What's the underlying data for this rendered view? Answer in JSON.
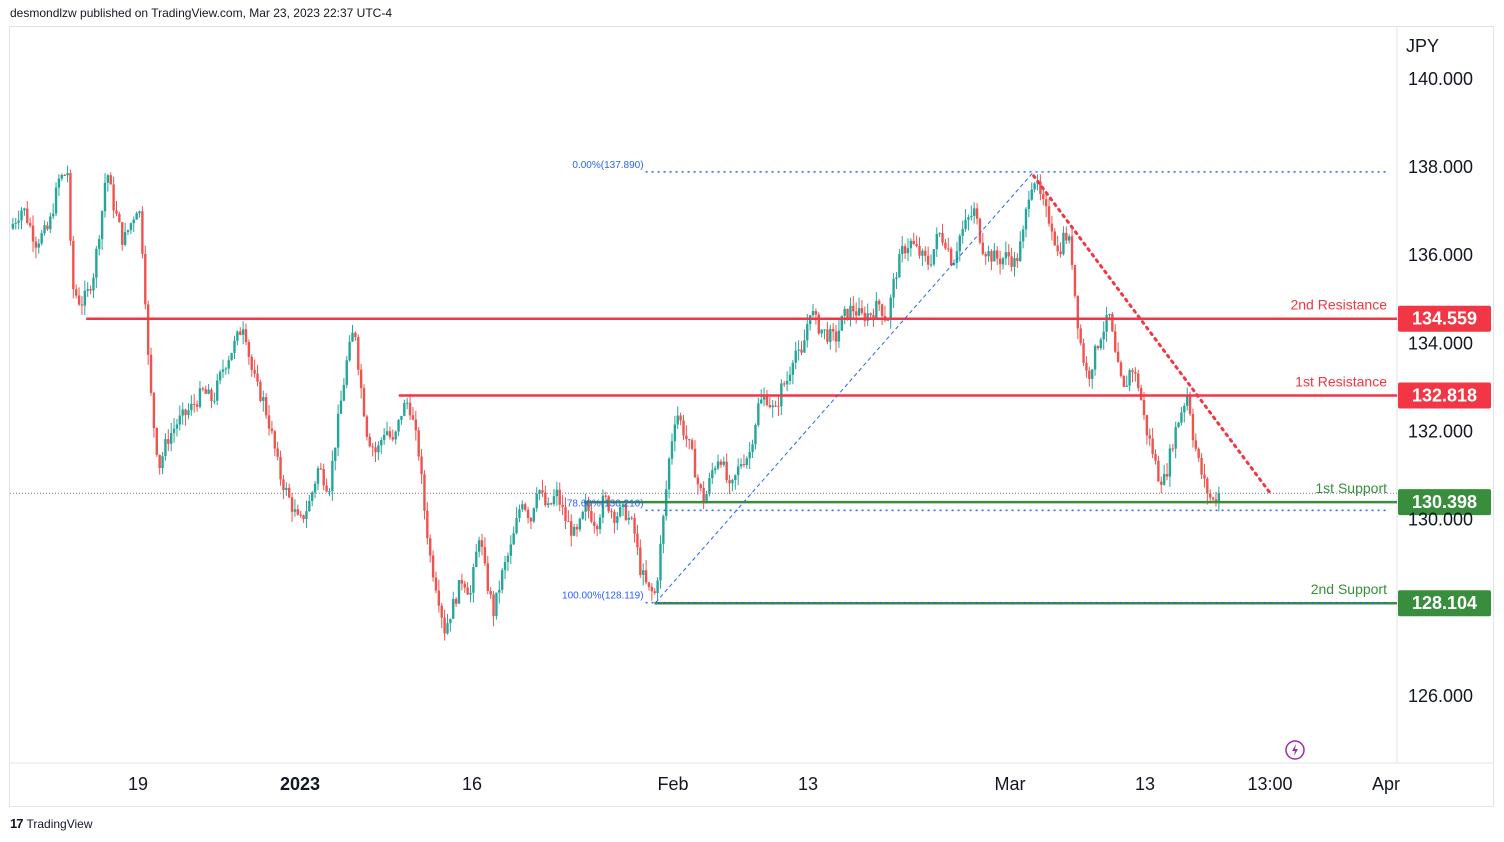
{
  "header": {
    "text": "desmondlzw published on TradingView.com, Mar 23, 2023 22:37 UTC-4"
  },
  "footer": {
    "brand": "TradingView",
    "logo_glyph": "17"
  },
  "colors": {
    "up": "#26a69a",
    "down": "#ef5350",
    "resistance": "#f23645",
    "support": "#388e3c",
    "fib": "#2962ff"
  },
  "chart_data": {
    "type": "candlestick",
    "currency": "JPY",
    "y_ticks": [
      "140.000",
      "138.000",
      "136.000",
      "134.000",
      "132.000",
      "130.000",
      "126.000"
    ],
    "ylim": [
      124.8,
      140.5
    ],
    "x_labels": [
      "19",
      "2023",
      "16",
      "Feb",
      "13",
      "Mar",
      "13",
      "13:00",
      "Apr"
    ],
    "bold_x_labels": [
      "2023"
    ],
    "levels": [
      {
        "name": "2nd Resistance",
        "value": 134.559,
        "tag": "134.559",
        "kind": "resistance",
        "from_t": 0.0592
      },
      {
        "name": "1st Resistance",
        "value": 132.818,
        "tag": "132.818",
        "kind": "resistance",
        "from_t": 0.3023
      },
      {
        "name": "1st Support",
        "value": 130.398,
        "tag": "130.398",
        "kind": "support",
        "from_t": 0.4463
      },
      {
        "name": "2nd Support",
        "value": 128.104,
        "tag": "128.104",
        "kind": "support",
        "from_t": 0.5011
      }
    ],
    "fibonacci": [
      {
        "label": "0.00%(137.890)",
        "value": 137.89
      },
      {
        "label": "78.60%(130.210)",
        "value": 130.21
      },
      {
        "label": "100.00%(128.119)",
        "value": 128.119
      }
    ],
    "last_price": 130.6,
    "price_path": [
      [
        0.0,
        136.6
      ],
      [
        0.01,
        137.1
      ],
      [
        0.02,
        136.3
      ],
      [
        0.03,
        136.6
      ],
      [
        0.038,
        137.7
      ],
      [
        0.045,
        137.9
      ],
      [
        0.048,
        135.3
      ],
      [
        0.055,
        134.9
      ],
      [
        0.06,
        135.1
      ],
      [
        0.065,
        135.6
      ],
      [
        0.072,
        137.1
      ],
      [
        0.075,
        138.0
      ],
      [
        0.08,
        137.2
      ],
      [
        0.088,
        136.3
      ],
      [
        0.095,
        136.8
      ],
      [
        0.1,
        137.2
      ],
      [
        0.104,
        135.8
      ],
      [
        0.108,
        133.3
      ],
      [
        0.112,
        132.1
      ],
      [
        0.116,
        131.2
      ],
      [
        0.122,
        131.8
      ],
      [
        0.13,
        132.2
      ],
      [
        0.14,
        132.5
      ],
      [
        0.15,
        132.9
      ],
      [
        0.158,
        132.7
      ],
      [
        0.165,
        133.4
      ],
      [
        0.175,
        134.0
      ],
      [
        0.182,
        134.5
      ],
      [
        0.187,
        133.5
      ],
      [
        0.192,
        133.0
      ],
      [
        0.197,
        132.7
      ],
      [
        0.203,
        132.0
      ],
      [
        0.21,
        131.0
      ],
      [
        0.218,
        130.4
      ],
      [
        0.225,
        129.9
      ],
      [
        0.233,
        130.4
      ],
      [
        0.24,
        131.2
      ],
      [
        0.248,
        130.7
      ],
      [
        0.255,
        132.2
      ],
      [
        0.262,
        133.6
      ],
      [
        0.268,
        134.4
      ],
      [
        0.272,
        133.2
      ],
      [
        0.278,
        131.9
      ],
      [
        0.285,
        131.5
      ],
      [
        0.292,
        132.1
      ],
      [
        0.298,
        131.7
      ],
      [
        0.305,
        132.5
      ],
      [
        0.31,
        132.7
      ],
      [
        0.318,
        131.5
      ],
      [
        0.322,
        130.3
      ],
      [
        0.327,
        129.1
      ],
      [
        0.333,
        128.3
      ],
      [
        0.338,
        127.5
      ],
      [
        0.345,
        128.1
      ],
      [
        0.352,
        128.7
      ],
      [
        0.358,
        128.3
      ],
      [
        0.365,
        129.7
      ],
      [
        0.37,
        128.7
      ],
      [
        0.376,
        127.9
      ],
      [
        0.383,
        128.8
      ],
      [
        0.39,
        129.4
      ],
      [
        0.398,
        130.5
      ],
      [
        0.405,
        130.0
      ],
      [
        0.41,
        130.8
      ],
      [
        0.418,
        130.2
      ],
      [
        0.425,
        130.6
      ],
      [
        0.432,
        130.0
      ],
      [
        0.44,
        129.6
      ],
      [
        0.448,
        130.3
      ],
      [
        0.456,
        129.9
      ],
      [
        0.462,
        130.5
      ],
      [
        0.47,
        130.1
      ],
      [
        0.478,
        130.2
      ],
      [
        0.485,
        129.8
      ],
      [
        0.49,
        128.9
      ],
      [
        0.496,
        128.4
      ],
      [
        0.502,
        128.3
      ],
      [
        0.508,
        130.0
      ],
      [
        0.513,
        131.5
      ],
      [
        0.518,
        132.5
      ],
      [
        0.524,
        132.0
      ],
      [
        0.53,
        131.5
      ],
      [
        0.535,
        130.8
      ],
      [
        0.54,
        130.4
      ],
      [
        0.546,
        131.1
      ],
      [
        0.552,
        131.5
      ],
      [
        0.56,
        130.6
      ],
      [
        0.568,
        131.3
      ],
      [
        0.575,
        131.5
      ],
      [
        0.582,
        132.6
      ],
      [
        0.588,
        132.8
      ],
      [
        0.595,
        132.4
      ],
      [
        0.6,
        133.0
      ],
      [
        0.605,
        133.2
      ],
      [
        0.61,
        133.9
      ],
      [
        0.615,
        133.6
      ],
      [
        0.622,
        134.8
      ],
      [
        0.628,
        134.4
      ],
      [
        0.635,
        134.2
      ],
      [
        0.642,
        134.1
      ],
      [
        0.648,
        134.6
      ],
      [
        0.655,
        134.8
      ],
      [
        0.662,
        134.6
      ],
      [
        0.67,
        134.7
      ],
      [
        0.676,
        134.9
      ],
      [
        0.682,
        134.5
      ],
      [
        0.688,
        135.5
      ],
      [
        0.694,
        136.1
      ],
      [
        0.7,
        136.3
      ],
      [
        0.708,
        136.0
      ],
      [
        0.715,
        135.8
      ],
      [
        0.722,
        136.5
      ],
      [
        0.728,
        136.3
      ],
      [
        0.733,
        135.8
      ],
      [
        0.738,
        136.4
      ],
      [
        0.745,
        136.8
      ],
      [
        0.75,
        137.0
      ],
      [
        0.756,
        136.2
      ],
      [
        0.762,
        136.0
      ],
      [
        0.77,
        135.9
      ],
      [
        0.776,
        136.0
      ],
      [
        0.782,
        135.8
      ],
      [
        0.788,
        136.5
      ],
      [
        0.792,
        137.4
      ],
      [
        0.796,
        137.8
      ],
      [
        0.8,
        137.4
      ],
      [
        0.805,
        137.0
      ],
      [
        0.81,
        136.7
      ],
      [
        0.815,
        136.0
      ],
      [
        0.82,
        136.5
      ],
      [
        0.825,
        136.2
      ],
      [
        0.829,
        134.8
      ],
      [
        0.833,
        133.9
      ],
      [
        0.838,
        133.2
      ],
      [
        0.842,
        133.6
      ],
      [
        0.848,
        134.2
      ],
      [
        0.855,
        134.6
      ],
      [
        0.86,
        133.6
      ],
      [
        0.866,
        132.9
      ],
      [
        0.872,
        133.5
      ],
      [
        0.878,
        133.0
      ],
      [
        0.883,
        132.1
      ],
      [
        0.888,
        131.6
      ],
      [
        0.893,
        131.0
      ],
      [
        0.898,
        130.9
      ],
      [
        0.905,
        131.9
      ],
      [
        0.91,
        132.4
      ],
      [
        0.916,
        132.9
      ],
      [
        0.92,
        131.9
      ],
      [
        0.925,
        131.2
      ],
      [
        0.93,
        130.7
      ],
      [
        0.935,
        130.4
      ],
      [
        0.94,
        130.6
      ]
    ]
  }
}
